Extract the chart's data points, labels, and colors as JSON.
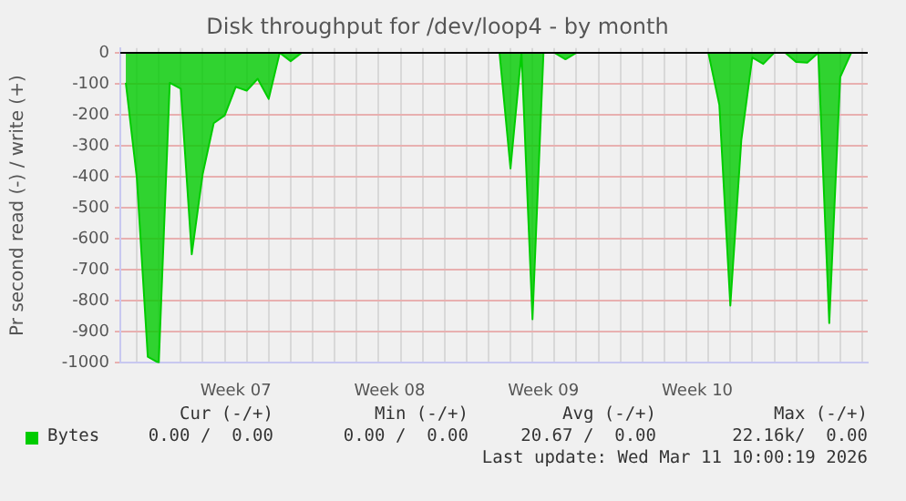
{
  "chart_data": {
    "type": "area",
    "title": "Disk throughput for /dev/loop4 - by month",
    "ylabel": "Pr second read (-) / write (+)",
    "categories": [
      null,
      null,
      null,
      null,
      null,
      null,
      null,
      null,
      null,
      null,
      "Week 07",
      null,
      null,
      null,
      null,
      null,
      null,
      null,
      null,
      null,
      null,
      null,
      null,
      null,
      "Week 08",
      null,
      null,
      null,
      null,
      null,
      null,
      null,
      null,
      null,
      null,
      null,
      null,
      null,
      "Week 09",
      null,
      null,
      null,
      null,
      null,
      null,
      null,
      null,
      null,
      null,
      null,
      null,
      null,
      "Week 10",
      null,
      null,
      null,
      null,
      null,
      null,
      null,
      null,
      null,
      null,
      null,
      null,
      null,
      null,
      null
    ],
    "series": [
      {
        "name": "Bytes",
        "color": "#00cc00",
        "values": [
          -97,
          -402,
          -980,
          -1000,
          -97,
          -116,
          -650,
          -390,
          -227,
          -202,
          -110,
          -122,
          -84,
          -149,
          0,
          -27,
          0,
          0,
          0,
          0,
          0,
          0,
          0,
          0,
          0,
          0,
          0,
          0,
          0,
          0,
          0,
          0,
          0,
          0,
          0,
          -373,
          0,
          -859,
          0,
          0,
          -21,
          0,
          0,
          0,
          0,
          0,
          0,
          0,
          0,
          0,
          0,
          0,
          0,
          0,
          -168,
          -815,
          -282,
          -15,
          -36,
          0,
          0,
          -30,
          -32,
          0,
          -872,
          -78,
          0,
          0
        ]
      }
    ],
    "ylim": [
      -1000,
      15
    ],
    "yticks": [
      -1000,
      -900,
      -800,
      -700,
      -600,
      -500,
      -400,
      -300,
      -200,
      -100,
      0
    ],
    "ref_lines": [
      {
        "axis": "y",
        "value": 0,
        "color": "#000000"
      }
    ],
    "grid": true,
    "legend": "bottom",
    "marker": "none",
    "annotations": [
      "Cur (-/+)",
      "Min (-/+)",
      "Avg (-/+)",
      "Max (-/+)",
      "0.00 /  0.00",
      "0.00 /  0.00",
      "20.67 /  0.00",
      "22.16k/  0.00",
      "Last update: Wed Mar 11 10:00:19 2026"
    ]
  }
}
